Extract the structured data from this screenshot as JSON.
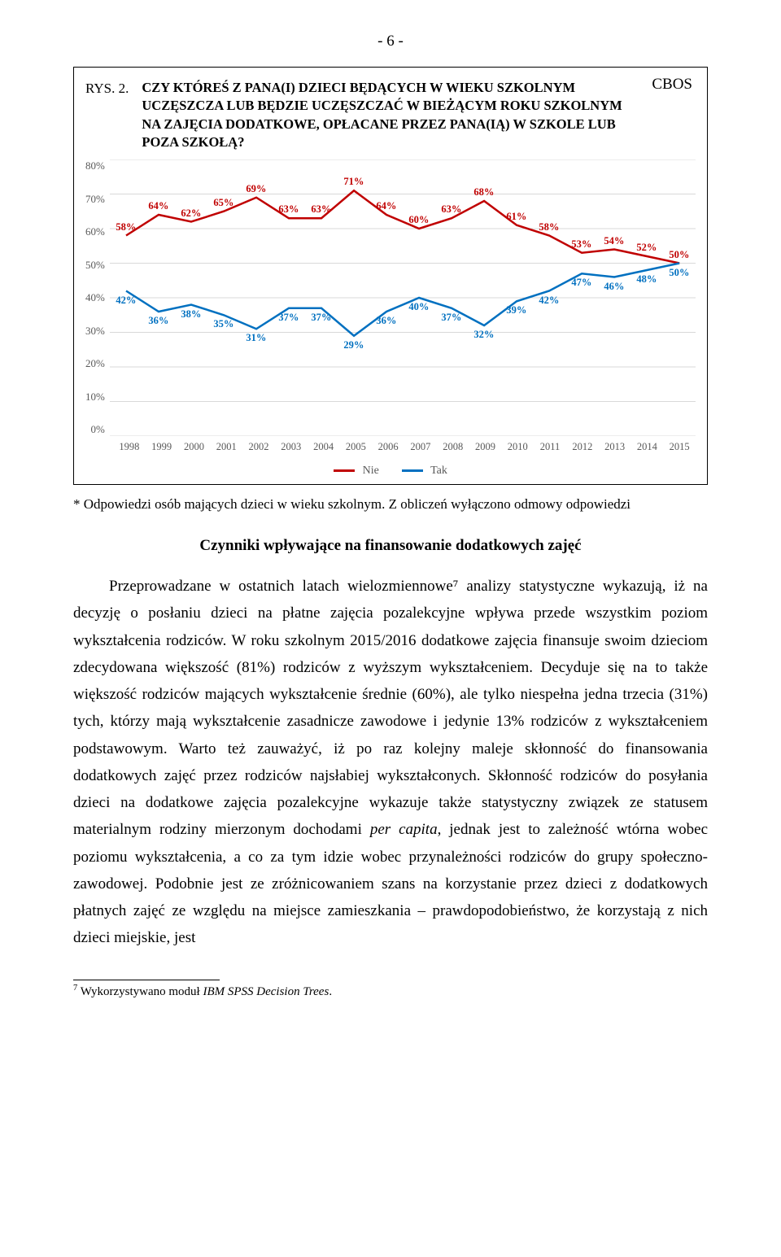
{
  "page_number": "- 6 -",
  "cbos": "CBOS",
  "rys_no": "RYS. 2.",
  "rys_title": "CZY KTÓREŚ Z PANA(I) DZIECI BĘDĄCYCH W WIEKU SZKOLNYM UCZĘSZCZA LUB BĘDZIE UCZĘSZCZAĆ W BIEŻĄCYM ROKU SZKOLNYM NA ZAJĘCIA DODATKOWE, OPŁACANE PRZEZ PANA(IĄ) W SZKOLE LUB POZA SZKOŁĄ?",
  "chart": {
    "type": "line",
    "background_color": "#ffffff",
    "grid_color": "#d9d9d9",
    "ylim": [
      0,
      80
    ],
    "ytick_step": 10,
    "yticks": [
      "80%",
      "70%",
      "60%",
      "50%",
      "40%",
      "30%",
      "20%",
      "10%",
      "0%"
    ],
    "years": [
      "1998",
      "1999",
      "2000",
      "2001",
      "2002",
      "2003",
      "2004",
      "2005",
      "2006",
      "2007",
      "2008",
      "2009",
      "2010",
      "2011",
      "2012",
      "2013",
      "2014",
      "2015"
    ],
    "series": [
      {
        "name": "Nie",
        "color": "#c00000",
        "label_color": "#c00000",
        "values": [
          58,
          64,
          62,
          65,
          69,
          63,
          63,
          71,
          64,
          60,
          63,
          68,
          61,
          58,
          53,
          54,
          52,
          50
        ],
        "label_pos": "above"
      },
      {
        "name": "Tak",
        "color": "#0070c0",
        "label_color": "#0070c0",
        "values": [
          42,
          36,
          38,
          35,
          31,
          37,
          37,
          29,
          36,
          40,
          37,
          32,
          39,
          42,
          47,
          46,
          48,
          50
        ],
        "label_pos": "below"
      }
    ],
    "legend_labels": [
      "Nie",
      "Tak"
    ],
    "axis_text_color": "#595959",
    "line_width": 2.5,
    "label_fontsize": 12.5
  },
  "chart_footnote": "* Odpowiedzi osób mających dzieci w wieku szkolnym. Z obliczeń wyłączono odmowy odpowiedzi",
  "subheading": "Czynniki wpływające na finansowanie dodatkowych zajęć",
  "body_para": "Przeprowadzane w ostatnich latach wielozmiennowe⁷ analizy statystyczne wykazują, iż na decyzję o posłaniu dzieci na płatne zajęcia pozalekcyjne wpływa przede wszystkim poziom wykształcenia rodziców. W roku szkolnym 2015/2016 dodatkowe zajęcia finansuje swoim dzieciom zdecydowana większość (81%) rodziców z wyższym wykształceniem. Decyduje się na to także większość rodziców mających wykształcenie średnie (60%), ale tylko niespełna jedna trzecia (31%) tych, którzy mają wykształcenie zasadnicze zawodowe i jedynie 13% rodziców z wykształceniem podstawowym. Warto też zauważyć, iż po raz kolejny maleje skłonność do finansowania dodatkowych zajęć przez rodziców najsłabiej wykształconych. Skłonność rodziców do posyłania dzieci na dodatkowe zajęcia pozalekcyjne wykazuje także statystyczny związek ze statusem materialnym rodziny mierzonym dochodami per capita, jednak jest to zależność wtórna wobec poziomu wykształcenia, a co za tym idzie wobec przynależności rodziców do grupy społeczno-zawodowej. Podobnie jest ze zróżnicowaniem szans na korzystanie przez dzieci z dodatkowych płatnych zajęć ze względu na miejsce zamieszkania – prawdopodobieństwo, że korzystają z nich dzieci miejskie, jest",
  "footnote_marker": "7",
  "footnote_text_pre": " Wykorzystywano moduł ",
  "footnote_text_em": "IBM SPSS Decision Trees",
  "footnote_text_post": "."
}
